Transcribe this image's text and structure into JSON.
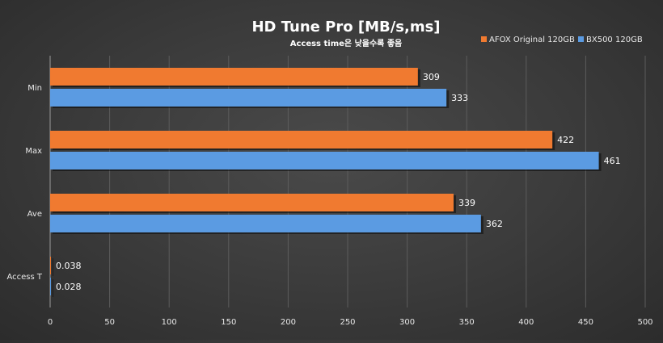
{
  "chart_data": {
    "type": "bar",
    "orientation": "horizontal",
    "title": "HD Tune Pro [MB/s,ms]",
    "subtitle": "Access time은 낮을수록 좋음",
    "categories": [
      "Min",
      "Max",
      "Ave",
      "Access T"
    ],
    "series": [
      {
        "name": "AFOX Original 120GB",
        "color": "#f07a30",
        "values": [
          309,
          422,
          339,
          0.038
        ],
        "labels": [
          "309",
          "422",
          "339",
          "0.038"
        ]
      },
      {
        "name": "BX500 120GB",
        "color": "#5b9be2",
        "values": [
          333,
          461,
          362,
          0.028
        ],
        "labels": [
          "333",
          "461",
          "362",
          "0.028"
        ]
      }
    ],
    "xlim": [
      0,
      500
    ],
    "xticks": [
      "0",
      "50",
      "100",
      "150",
      "200",
      "250",
      "300",
      "350",
      "400",
      "450",
      "500"
    ],
    "grid": "vertical",
    "legend": "top-right"
  }
}
